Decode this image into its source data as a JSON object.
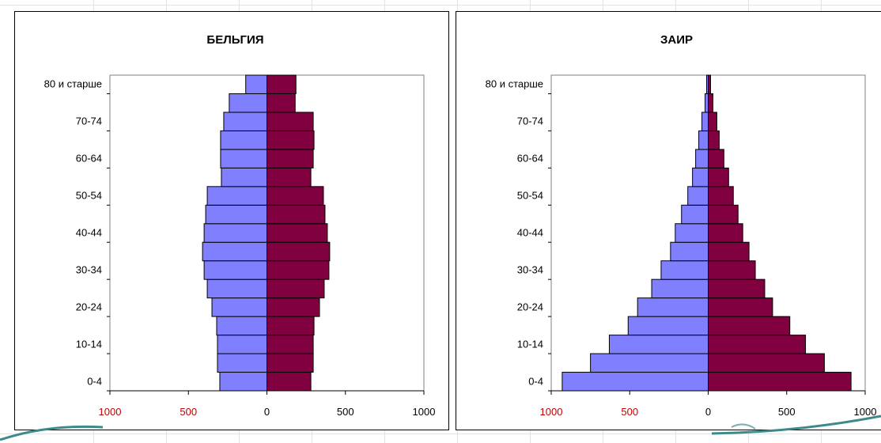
{
  "chart_data": [
    {
      "type": "bar",
      "orientation": "horizontal",
      "title": "БЕЛЬГИЯ",
      "categories_labels": [
        "0-4",
        "10-14",
        "20-24",
        "30-34",
        "40-44",
        "50-54",
        "60-64",
        "70-74",
        "80 и старше"
      ],
      "rows": 17,
      "xlim": [
        -1000,
        1000
      ],
      "x_ticks": [
        "1000",
        "500",
        "0",
        "500",
        "1000"
      ],
      "x_tick_values": [
        -1000,
        -500,
        0,
        500,
        1000
      ],
      "negative_tick_color": "#c00000",
      "series": [
        {
          "color": "#8080ff",
          "values": [
            300,
            315,
            315,
            320,
            350,
            380,
            400,
            410,
            400,
            390,
            380,
            290,
            295,
            295,
            275,
            240,
            135
          ]
        },
        {
          "color": "#800040",
          "values": [
            280,
            295,
            295,
            300,
            335,
            365,
            395,
            400,
            385,
            370,
            360,
            280,
            295,
            300,
            295,
            180,
            185
          ]
        }
      ],
      "left_series_values_top_to_bottom_note_removed": true
    },
    {
      "type": "bar",
      "orientation": "horizontal",
      "title": "ЗАИР",
      "categories_labels": [
        "0-4",
        "10-14",
        "20-24",
        "30-34",
        "40-44",
        "50-54",
        "60-64",
        "70-74",
        "80 и старше"
      ],
      "rows": 17,
      "xlim": [
        -1000,
        1000
      ],
      "x_ticks": [
        "1000",
        "500",
        "0",
        "500",
        "1000"
      ],
      "x_tick_values": [
        -1000,
        -500,
        0,
        500,
        1000
      ],
      "negative_tick_color": "#c00000",
      "series": [
        {
          "color": "#8080ff",
          "values": [
            930,
            750,
            630,
            510,
            450,
            360,
            300,
            240,
            210,
            170,
            130,
            100,
            80,
            60,
            40,
            20,
            10
          ]
        },
        {
          "color": "#800040",
          "values": [
            910,
            740,
            620,
            520,
            410,
            360,
            300,
            260,
            220,
            190,
            160,
            130,
            100,
            70,
            55,
            30,
            15
          ]
        }
      ]
    }
  ]
}
